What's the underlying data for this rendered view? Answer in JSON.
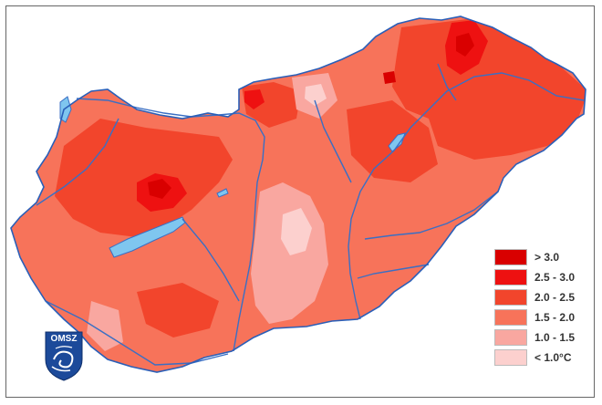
{
  "legend": {
    "items": [
      {
        "label": "> 3.0",
        "color": "#d90000"
      },
      {
        "label": "2.5 - 3.0",
        "color": "#ee1111"
      },
      {
        "label": "2.0 - 2.5",
        "color": "#f2452c"
      },
      {
        "label": "1.5 - 2.0",
        "color": "#f7735a"
      },
      {
        "label": "1.0 - 1.5",
        "color": "#f9a7a0"
      },
      {
        "label": "< 1.0°C",
        "color": "#fcd0ce"
      }
    ]
  },
  "logo": {
    "text": "OMSZ",
    "color": "#1c4a9a"
  },
  "map": {
    "region": "Hungary",
    "base_color": "#f7735a",
    "water_color": "#7fc6ef",
    "river_color": "#3a6fc4"
  }
}
